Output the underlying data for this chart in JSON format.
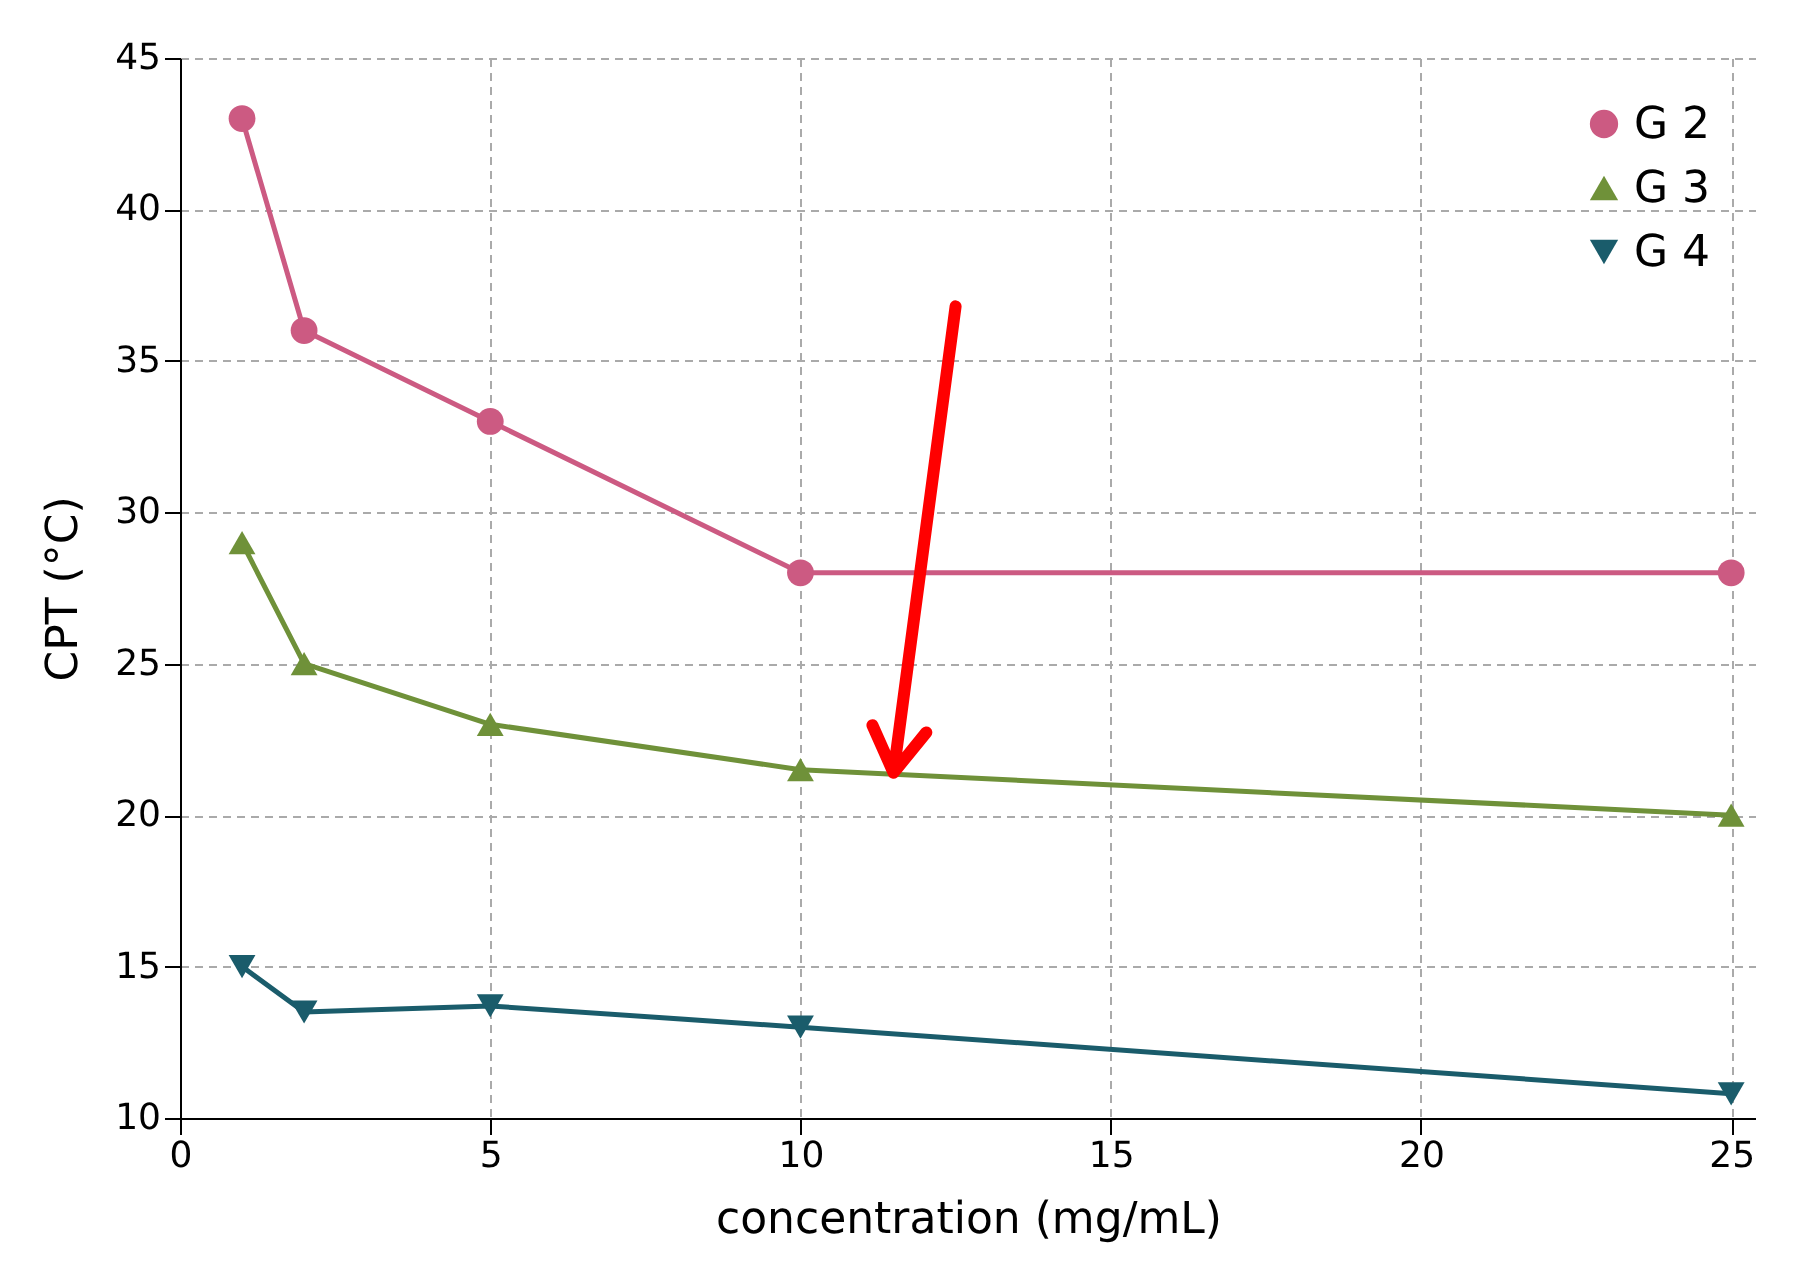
{
  "chart_data": {
    "type": "line",
    "xlabel": "concentration (mg/mL)",
    "ylabel": "CPT (°C)",
    "x": [
      1,
      2,
      5,
      10,
      25
    ],
    "series": [
      {
        "name": "G 2",
        "color": "#cc5a82",
        "marker": "circle",
        "values": [
          43,
          36,
          33,
          28,
          28
        ]
      },
      {
        "name": "G 3",
        "color": "#6f9139",
        "marker": "triangle",
        "values": [
          29,
          25,
          23,
          21.5,
          20
        ]
      },
      {
        "name": "G 4",
        "color": "#1a5c6b",
        "marker": "triangle-down",
        "values": [
          15,
          13.5,
          13.7,
          13,
          10.8
        ]
      }
    ],
    "xlim": [
      0,
      25.4
    ],
    "ylim": [
      10,
      45
    ],
    "xticks": [
      0,
      5,
      10,
      15,
      20,
      25
    ],
    "yticks": [
      10,
      15,
      20,
      25,
      30,
      35,
      40,
      45
    ],
    "grid": true,
    "legend": "top right",
    "line_style": "solid"
  }
}
